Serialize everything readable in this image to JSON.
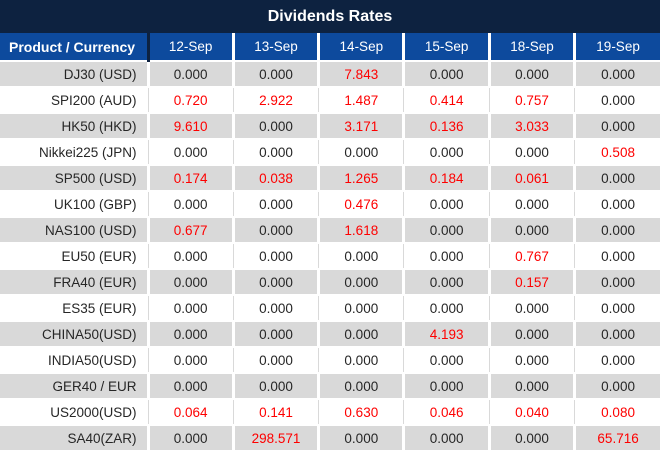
{
  "title": "Dividends Rates",
  "colors": {
    "title_bar": "#0d2240",
    "header_row": "#0d4a9d",
    "row_gray": "#d9d9d9",
    "row_white": "#ffffff",
    "value_zero_text": "#262626",
    "value_nonzero_text": "#fe0000"
  },
  "table": {
    "product_header": "Product / Currency",
    "date_headers": [
      "12-Sep",
      "13-Sep",
      "14-Sep",
      "15-Sep",
      "18-Sep",
      "19-Sep"
    ],
    "zero_value": "0.000",
    "rows": [
      {
        "product": "DJ30 (USD)",
        "values": [
          "0.000",
          "0.000",
          "7.843",
          "0.000",
          "0.000",
          "0.000"
        ]
      },
      {
        "product": "SPI200 (AUD)",
        "values": [
          "0.720",
          "2.922",
          "1.487",
          "0.414",
          "0.757",
          "0.000"
        ]
      },
      {
        "product": "HK50 (HKD)",
        "values": [
          "9.610",
          "0.000",
          "3.171",
          "0.136",
          "3.033",
          "0.000"
        ]
      },
      {
        "product": "Nikkei225 (JPN)",
        "values": [
          "0.000",
          "0.000",
          "0.000",
          "0.000",
          "0.000",
          "0.508"
        ]
      },
      {
        "product": "SP500 (USD)",
        "values": [
          "0.174",
          "0.038",
          "1.265",
          "0.184",
          "0.061",
          "0.000"
        ]
      },
      {
        "product": "UK100 (GBP)",
        "values": [
          "0.000",
          "0.000",
          "0.476",
          "0.000",
          "0.000",
          "0.000"
        ]
      },
      {
        "product": "NAS100 (USD)",
        "values": [
          "0.677",
          "0.000",
          "1.618",
          "0.000",
          "0.000",
          "0.000"
        ]
      },
      {
        "product": "EU50 (EUR)",
        "values": [
          "0.000",
          "0.000",
          "0.000",
          "0.000",
          "0.767",
          "0.000"
        ]
      },
      {
        "product": "FRA40 (EUR)",
        "values": [
          "0.000",
          "0.000",
          "0.000",
          "0.000",
          "0.157",
          "0.000"
        ]
      },
      {
        "product": "ES35 (EUR)",
        "values": [
          "0.000",
          "0.000",
          "0.000",
          "0.000",
          "0.000",
          "0.000"
        ]
      },
      {
        "product": "CHINA50(USD)",
        "values": [
          "0.000",
          "0.000",
          "0.000",
          "4.193",
          "0.000",
          "0.000"
        ]
      },
      {
        "product": "INDIA50(USD)",
        "values": [
          "0.000",
          "0.000",
          "0.000",
          "0.000",
          "0.000",
          "0.000"
        ]
      },
      {
        "product": "GER40 / EUR",
        "values": [
          "0.000",
          "0.000",
          "0.000",
          "0.000",
          "0.000",
          "0.000"
        ]
      },
      {
        "product": "US2000(USD)",
        "values": [
          "0.064",
          "0.141",
          "0.630",
          "0.046",
          "0.040",
          "0.080"
        ]
      },
      {
        "product": "SA40(ZAR)",
        "values": [
          "0.000",
          "298.571",
          "0.000",
          "0.000",
          "0.000",
          "65.716"
        ]
      }
    ]
  }
}
